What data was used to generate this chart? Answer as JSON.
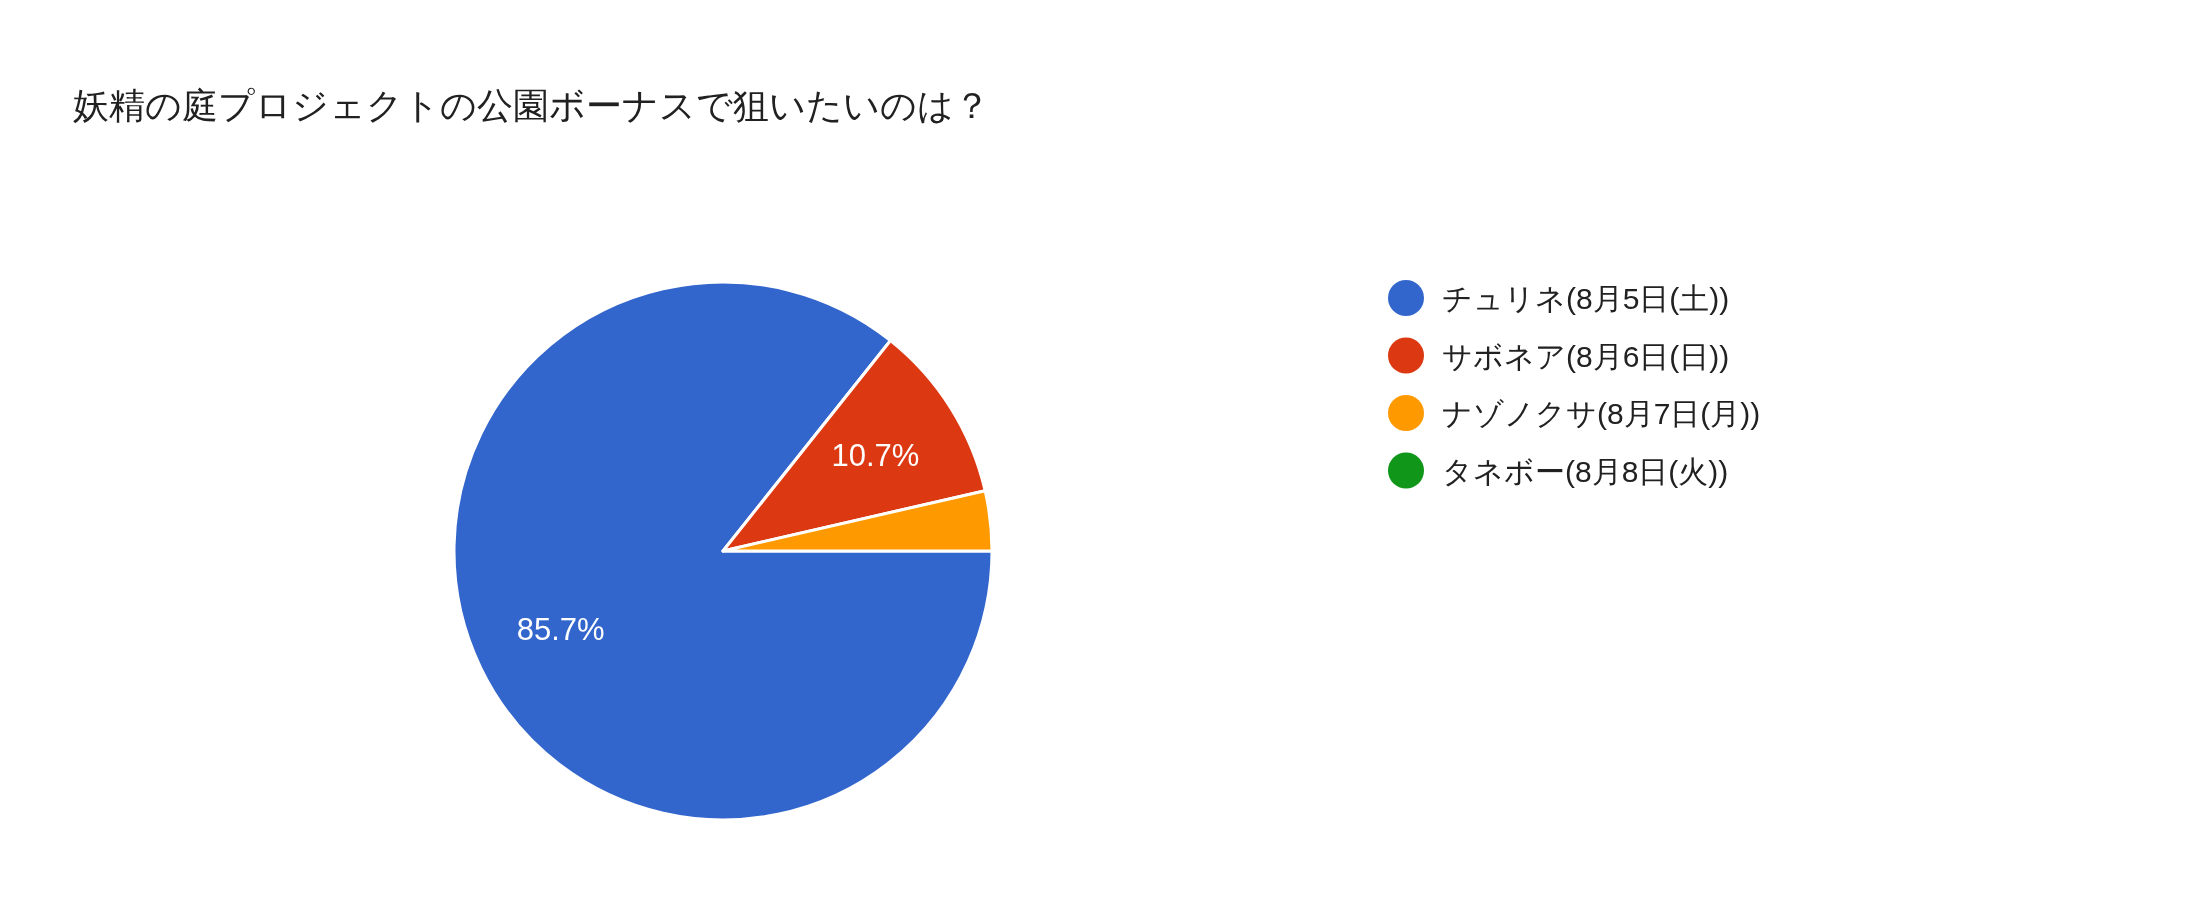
{
  "chart_data": {
    "type": "pie",
    "title": "妖精の庭プロジェクトの公園ボーナスで狙いたいのは？",
    "categories": [
      "チュリネ(8月5日(土))",
      "サボネア(8月6日(日))",
      "ナゾノクサ(8月7日(月))",
      "タネボー(8月8日(火))"
    ],
    "values": [
      85.7,
      10.7,
      3.6,
      0
    ],
    "colors": [
      "#3366cc",
      "#dc3912",
      "#ff9900",
      "#109618"
    ],
    "value_labels": [
      "85.7%",
      "10.7%",
      null,
      null
    ],
    "legend": "right"
  }
}
